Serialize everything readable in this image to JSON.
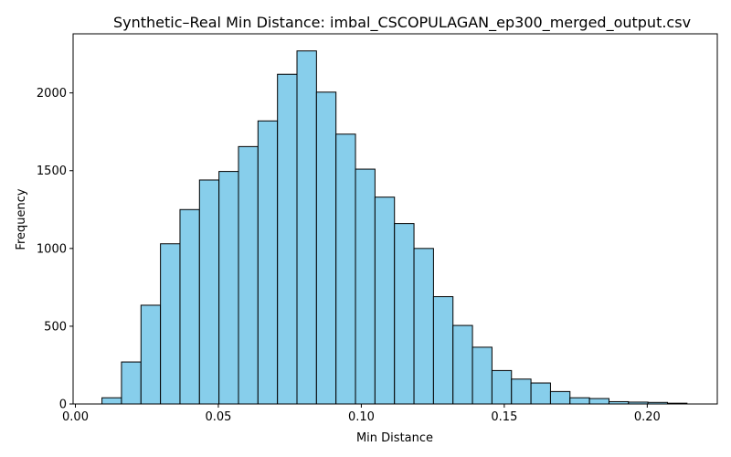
{
  "chart_data": {
    "type": "bar",
    "title": "Synthetic–Real Min Distance: imbal_CSCOPULAGAN_ep300_merged_output.csv",
    "xlabel": "Min Distance",
    "ylabel": "Frequency",
    "xlim": [
      -0.0008,
      0.2245
    ],
    "ylim": [
      0,
      2380
    ],
    "xticks": [
      0.0,
      0.05,
      0.1,
      0.15,
      0.2
    ],
    "xtick_labels": [
      "0.00",
      "0.05",
      "0.10",
      "0.15",
      "0.20"
    ],
    "yticks": [
      0,
      500,
      1000,
      1500,
      2000
    ],
    "ytick_labels": [
      "0",
      "500",
      "1000",
      "1500",
      "2000"
    ],
    "grid": false,
    "bar_color": "#87ceeb",
    "edge_color": "#000000",
    "bin_start": 0.0093,
    "bin_width": 0.00682,
    "values": [
      40,
      270,
      635,
      1030,
      1250,
      1440,
      1495,
      1655,
      1820,
      2120,
      2270,
      2005,
      1735,
      1510,
      1330,
      1160,
      1000,
      690,
      505,
      365,
      215,
      160,
      135,
      80,
      40,
      35,
      15,
      12,
      10,
      5
    ]
  }
}
